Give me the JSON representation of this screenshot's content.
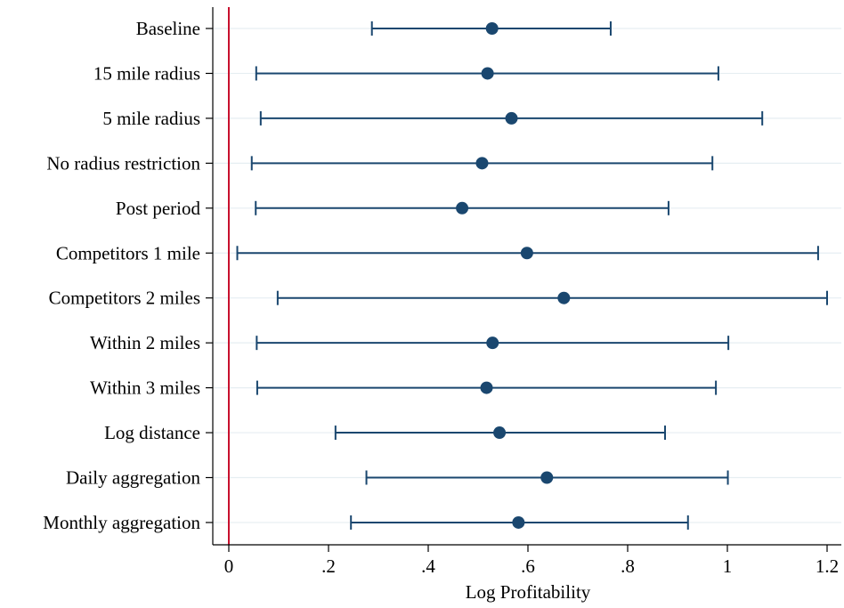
{
  "chart_data": {
    "type": "scatter",
    "subtype": "coefficient-plot-with-confidence-intervals",
    "title": "",
    "xlabel": "Log Profitability",
    "ylabel": "",
    "xlim": [
      0,
      1.2
    ],
    "xticks": [
      0,
      0.2,
      0.4,
      0.6,
      0.8,
      1,
      1.2
    ],
    "xtick_labels": [
      "0",
      ".2",
      ".4",
      ".6",
      ".8",
      "1",
      "1.2"
    ],
    "reference_line": {
      "x": 0,
      "color": "#c8102e"
    },
    "grid": "horizontal",
    "legend": "none",
    "colors": {
      "marker": "#1a476f",
      "grid": "#e6eef2",
      "axis": "#000000"
    },
    "categories": [
      "Baseline",
      "15 mile radius",
      "5 mile radius",
      "No radius restriction",
      "Post period",
      "Competitors 1 mile",
      "Competitors 2 miles",
      "Within 2 miles",
      "Within 3 miles",
      "Log distance",
      "Daily aggregation",
      "Monthly aggregation"
    ],
    "estimates": [
      0.528,
      0.519,
      0.567,
      0.508,
      0.468,
      0.598,
      0.672,
      0.529,
      0.517,
      0.543,
      0.638,
      0.581
    ],
    "ci_low": [
      0.287,
      0.055,
      0.064,
      0.046,
      0.054,
      0.017,
      0.098,
      0.056,
      0.057,
      0.214,
      0.276,
      0.245
    ],
    "ci_high": [
      0.766,
      0.982,
      1.07,
      0.97,
      0.882,
      1.182,
      1.2,
      1.002,
      0.977,
      0.875,
      1.001,
      0.921
    ]
  }
}
